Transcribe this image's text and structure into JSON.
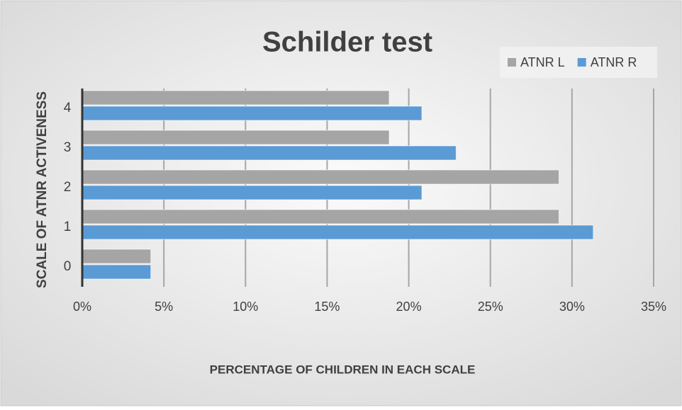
{
  "chart_data": {
    "type": "hbar",
    "title": "Schilder test",
    "ylabel": "SCALE OF ATNR ACTIVENESS",
    "xlabel": "PERCENTAGE OF CHILDREN IN EACH SCALE",
    "categories": [
      "0",
      "1",
      "2",
      "3",
      "4"
    ],
    "series": [
      {
        "name": "ATNR L",
        "color": "#a5a5a5",
        "values": [
          4.2,
          29.2,
          29.2,
          18.8,
          18.8
        ]
      },
      {
        "name": "ATNR R",
        "color": "#5b9bd5",
        "values": [
          4.2,
          31.3,
          20.8,
          22.9,
          20.8
        ]
      }
    ],
    "xlim": [
      0,
      35
    ],
    "xticks": [
      {
        "value": 0,
        "label": "0%"
      },
      {
        "value": 5,
        "label": "5%"
      },
      {
        "value": 10,
        "label": "10%"
      },
      {
        "value": 15,
        "label": "15%"
      },
      {
        "value": 20,
        "label": "20%"
      },
      {
        "value": 25,
        "label": "25%"
      },
      {
        "value": 30,
        "label": "30%"
      },
      {
        "value": 35,
        "label": "35%"
      }
    ],
    "grid": true,
    "legend": "top-right"
  }
}
